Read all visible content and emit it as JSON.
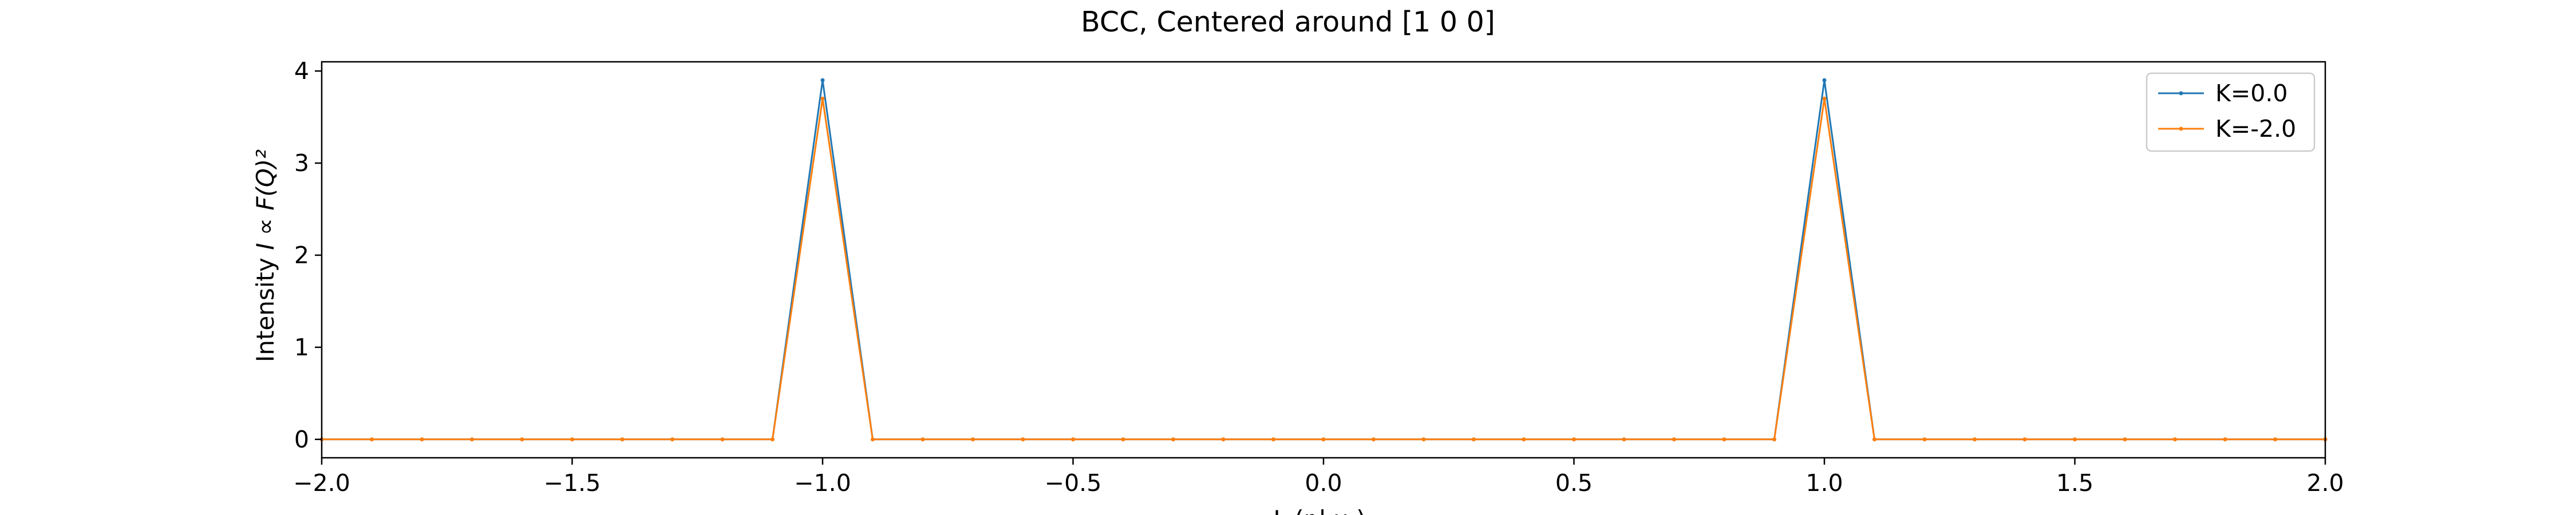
{
  "chart_data": {
    "type": "line",
    "title": "BCC, Centered around [1 0 0]",
    "xlabel": "L (r.l.u.)",
    "ylabel_prefix": "Intensity ",
    "ylabel_math": "I ∝ F(Q)²",
    "xlim": [
      -2.0,
      2.0
    ],
    "ylim": [
      -0.2,
      4.1
    ],
    "xticks": [
      "−2.0",
      "−1.5",
      "−1.0",
      "−0.5",
      "0.0",
      "0.5",
      "1.0",
      "1.5",
      "2.0"
    ],
    "yticks": [
      "0",
      "1",
      "2",
      "3",
      "4"
    ],
    "legend_position": "top-right",
    "grid": false,
    "x": [
      -2.0,
      -1.9,
      -1.8,
      -1.7,
      -1.6,
      -1.5,
      -1.4,
      -1.3,
      -1.2,
      -1.1,
      -1.0,
      -0.9,
      -0.8,
      -0.7,
      -0.6,
      -0.5,
      -0.4,
      -0.3,
      -0.2,
      -0.1,
      0.0,
      0.1,
      0.2,
      0.3,
      0.4,
      0.5,
      0.6,
      0.7,
      0.8,
      0.9,
      1.0,
      1.1,
      1.2,
      1.3,
      1.4,
      1.5,
      1.6,
      1.7,
      1.8,
      1.9,
      2.0
    ],
    "series": [
      {
        "name": "K=0.0",
        "color": "#1f77b4",
        "values": [
          0,
          0,
          0,
          0,
          0,
          0,
          0,
          0,
          0,
          0,
          3.9,
          0,
          0,
          0,
          0,
          0,
          0,
          0,
          0,
          0,
          0,
          0,
          0,
          0,
          0,
          0,
          0,
          0,
          0,
          0,
          3.9,
          0,
          0,
          0,
          0,
          0,
          0,
          0,
          0,
          0,
          0
        ]
      },
      {
        "name": "K=-2.0",
        "color": "#ff7f0e",
        "values": [
          0,
          0,
          0,
          0,
          0,
          0,
          0,
          0,
          0,
          0,
          3.7,
          0,
          0,
          0,
          0,
          0,
          0,
          0,
          0,
          0,
          0,
          0,
          0,
          0,
          0,
          0,
          0,
          0,
          0,
          0,
          3.7,
          0,
          0,
          0,
          0,
          0,
          0,
          0,
          0,
          0,
          0
        ]
      }
    ]
  }
}
